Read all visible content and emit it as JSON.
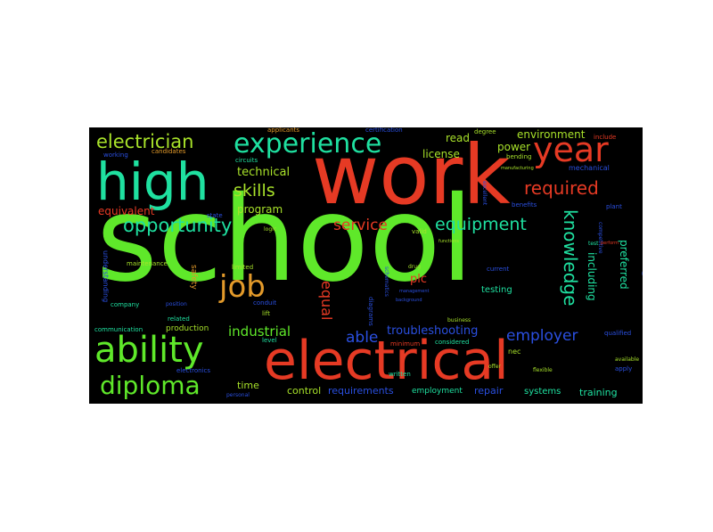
{
  "colors": {
    "background": "#000000",
    "page": "#ffffff",
    "red": "#e63a24",
    "green": "#5fe82a",
    "teal": "#1fe0a0",
    "blue": "#2a4fe0",
    "orange": "#e39a2a",
    "lime": "#a8e22a"
  },
  "words": [
    {
      "text": "school",
      "color": "#5fe82a"
    },
    {
      "text": "work",
      "color": "#e63a24"
    },
    {
      "text": "high",
      "color": "#1fe0a0"
    },
    {
      "text": "electrical",
      "color": "#e63a24"
    },
    {
      "text": "ability",
      "color": "#5fe82a"
    },
    {
      "text": "experience",
      "color": "#1fe0a0"
    },
    {
      "text": "year",
      "color": "#e63a24"
    },
    {
      "text": "job",
      "color": "#e39a2a"
    },
    {
      "text": "diploma",
      "color": "#5fe82a"
    },
    {
      "text": "electrician",
      "color": "#a8e22a"
    },
    {
      "text": "opportunity",
      "color": "#1fe0a0"
    },
    {
      "text": "required",
      "color": "#e63a24"
    },
    {
      "text": "equipment",
      "color": "#1fe0a0"
    },
    {
      "text": "service",
      "color": "#e63a24"
    },
    {
      "text": "skills",
      "color": "#a8e22a"
    },
    {
      "text": "knowledge",
      "color": "#1fe0a0"
    },
    {
      "text": "employer",
      "color": "#2a4fe0"
    },
    {
      "text": "equal",
      "color": "#e63a24"
    },
    {
      "text": "wiring",
      "color": "#2a4fe0"
    },
    {
      "text": "able",
      "color": "#2a4fe0"
    },
    {
      "text": "troubleshooting",
      "color": "#2a4fe0"
    },
    {
      "text": "industrial",
      "color": "#5fe82a"
    },
    {
      "text": "technical",
      "color": "#a8e22a"
    },
    {
      "text": "program",
      "color": "#a8e22a"
    },
    {
      "text": "equivalent",
      "color": "#e63a24"
    },
    {
      "text": "environment",
      "color": "#a8e22a"
    },
    {
      "text": "license",
      "color": "#a8e22a"
    },
    {
      "text": "read",
      "color": "#a8e22a"
    },
    {
      "text": "power",
      "color": "#a8e22a"
    },
    {
      "text": "plc",
      "color": "#e63a24"
    },
    {
      "text": "including",
      "color": "#1fe0a0"
    },
    {
      "text": "preferred",
      "color": "#1fe0a0"
    },
    {
      "text": "control",
      "color": "#a8e22a"
    },
    {
      "text": "requirements",
      "color": "#2a4fe0"
    },
    {
      "text": "employment",
      "color": "#1fe0a0"
    },
    {
      "text": "repair",
      "color": "#2a4fe0"
    },
    {
      "text": "systems",
      "color": "#1fe0a0"
    },
    {
      "text": "training",
      "color": "#1fe0a0"
    },
    {
      "text": "time",
      "color": "#a8e22a"
    },
    {
      "text": "testing",
      "color": "#1fe0a0"
    },
    {
      "text": "mechanical",
      "color": "#2a4fe0"
    },
    {
      "text": "safety",
      "color": "#e39a2a"
    },
    {
      "text": "production",
      "color": "#a8e22a"
    },
    {
      "text": "applicants",
      "color": "#e39a2a"
    },
    {
      "text": "certification",
      "color": "#2a4fe0"
    },
    {
      "text": "degree",
      "color": "#a8e22a"
    },
    {
      "text": "include",
      "color": "#e63a24"
    },
    {
      "text": "candidates",
      "color": "#e39a2a"
    },
    {
      "text": "working",
      "color": "#2a4fe0"
    },
    {
      "text": "circuits",
      "color": "#1fe0a0"
    },
    {
      "text": "bending",
      "color": "#a8e22a"
    },
    {
      "text": "state",
      "color": "#2a4fe0"
    },
    {
      "text": "benefits",
      "color": "#2a4fe0"
    },
    {
      "text": "plant",
      "color": "#2a4fe0"
    },
    {
      "text": "maintenance",
      "color": "#a8e22a"
    },
    {
      "text": "limited",
      "color": "#a8e22a"
    },
    {
      "text": "understanding",
      "color": "#2a4fe0"
    },
    {
      "text": "company",
      "color": "#1fe0a0"
    },
    {
      "text": "related",
      "color": "#1fe0a0"
    },
    {
      "text": "lift",
      "color": "#a8e22a"
    },
    {
      "text": "communication",
      "color": "#1fe0a0"
    },
    {
      "text": "level",
      "color": "#1fe0a0"
    },
    {
      "text": "electronics",
      "color": "#2a4fe0"
    },
    {
      "text": "written",
      "color": "#1fe0a0"
    },
    {
      "text": "minimum",
      "color": "#e63a24"
    },
    {
      "text": "considered",
      "color": "#1fe0a0"
    },
    {
      "text": "nec",
      "color": "#a8e22a"
    },
    {
      "text": "qualified",
      "color": "#2a4fe0"
    },
    {
      "text": "apply",
      "color": "#2a4fe0"
    },
    {
      "text": "current",
      "color": "#2a4fe0"
    },
    {
      "text": "conduit",
      "color": "#2a4fe0"
    },
    {
      "text": "diagrams",
      "color": "#2a4fe0"
    },
    {
      "text": "schematics",
      "color": "#2a4fe0"
    },
    {
      "text": "excellent",
      "color": "#2a4fe0"
    },
    {
      "text": "competitive",
      "color": "#2a4fe0"
    },
    {
      "text": "valid",
      "color": "#a8e22a"
    },
    {
      "text": "business",
      "color": "#a8e22a"
    },
    {
      "text": "flexible",
      "color": "#a8e22a"
    },
    {
      "text": "available",
      "color": "#a8e22a"
    },
    {
      "text": "personal",
      "color": "#2a4fe0"
    },
    {
      "text": "offer",
      "color": "#a8e22a"
    },
    {
      "text": "position",
      "color": "#2a4fe0"
    },
    {
      "text": "manufacturing",
      "color": "#a8e22a"
    },
    {
      "text": "test",
      "color": "#1fe0a0"
    },
    {
      "text": "perform",
      "color": "#e63a24"
    },
    {
      "text": "functions",
      "color": "#a8e22a"
    },
    {
      "text": "logic",
      "color": "#a8e22a"
    },
    {
      "text": "background",
      "color": "#2a4fe0"
    },
    {
      "text": "management",
      "color": "#2a4fe0"
    },
    {
      "text": "drug",
      "color": "#a8e22a"
    }
  ]
}
